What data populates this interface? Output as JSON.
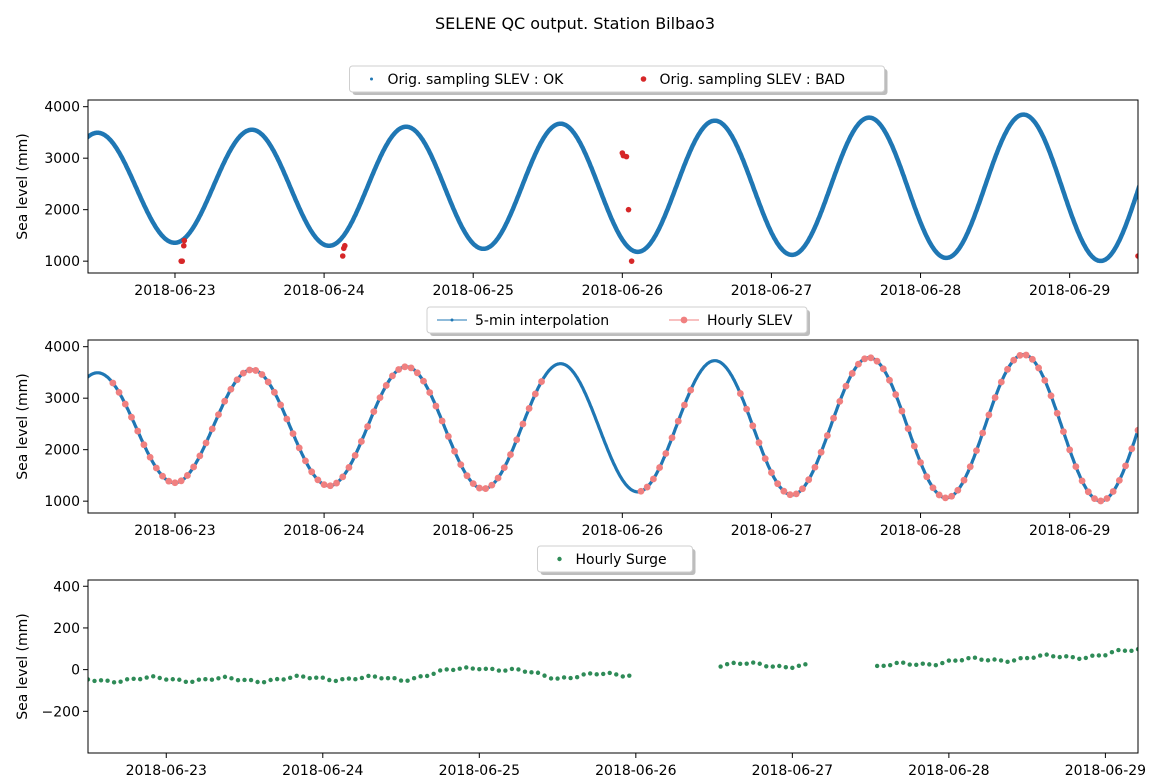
{
  "figure": {
    "title": "SELENE QC output. Station Bilbao3"
  },
  "colors": {
    "ok": "#1f77b4",
    "bad": "#d62728",
    "interp": "#1f77b4",
    "hourly": "#f08080",
    "surge": "#2e8b57"
  },
  "chart_data": [
    {
      "type": "scatter",
      "ylabel": "Sea level (mm)",
      "x_tick_labels": [
        "2018-06-23",
        "2018-06-24",
        "2018-06-25",
        "2018-06-26",
        "2018-06-27",
        "2018-06-28",
        "2018-06-29"
      ],
      "y_ticks": [
        1000,
        2000,
        3000,
        4000
      ],
      "xlim": [
        "2018-06-22 10:00",
        "2018-06-29 11:00"
      ],
      "ylim": [
        770,
        4130
      ],
      "legend_location": "upper center, above axes",
      "series": [
        {
          "name": "Orig. sampling SLEV : OK",
          "marker": "small dot",
          "tide_model": {
            "mean": 2440,
            "amplitude": [
              1050,
              1450
            ],
            "period_hours": 24.84,
            "first_high_water": "2018-06-22 11:30"
          }
        },
        {
          "name": "Orig. sampling SLEV : BAD",
          "marker": "dot",
          "points": [
            [
              "2018-06-23 01:00",
              1000
            ],
            [
              "2018-06-23 01:10",
              1000
            ],
            [
              "2018-06-23 01:25",
              1300
            ],
            [
              "2018-06-23 01:30",
              1400
            ],
            [
              "2018-06-24 03:00",
              1100
            ],
            [
              "2018-06-24 03:10",
              1250
            ],
            [
              "2018-06-24 03:20",
              1300
            ],
            [
              "2018-06-26 00:00",
              3100
            ],
            [
              "2018-06-26 00:10",
              3050
            ],
            [
              "2018-06-26 00:40",
              3030
            ],
            [
              "2018-06-26 01:00",
              2000
            ],
            [
              "2018-06-26 01:30",
              1000
            ],
            [
              "2018-06-29 11:00",
              1100
            ]
          ]
        }
      ]
    },
    {
      "type": "line",
      "ylabel": "Sea level (mm)",
      "x_tick_labels": [
        "2018-06-23",
        "2018-06-24",
        "2018-06-25",
        "2018-06-26",
        "2018-06-27",
        "2018-06-28",
        "2018-06-29"
      ],
      "y_ticks": [
        1000,
        2000,
        3000,
        4000
      ],
      "xlim": [
        "2018-06-22 10:00",
        "2018-06-29 11:00"
      ],
      "ylim": [
        770,
        4130
      ],
      "legend_location": "upper center, above axes",
      "series": [
        {
          "name": "5-min interpolation",
          "marker": "line with small dots"
        },
        {
          "name": "Hourly SLEV",
          "marker": "dot",
          "missing_intervals": [
            [
              "2018-06-25 12:00",
              "2018-06-26 02:00"
            ],
            [
              "2018-06-26 12:00",
              "2018-06-26 18:00"
            ]
          ]
        }
      ]
    },
    {
      "type": "scatter",
      "ylabel": "Sea level (mm)",
      "x_tick_labels": [
        "2018-06-23",
        "2018-06-24",
        "2018-06-25",
        "2018-06-26",
        "2018-06-27",
        "2018-06-28",
        "2018-06-29"
      ],
      "y_ticks": [
        -200,
        0,
        200,
        400
      ],
      "xlim": [
        "2018-06-22 12:00",
        "2018-06-29 05:00"
      ],
      "ylim": [
        -400,
        430
      ],
      "legend_location": "upper center, above axes",
      "series": [
        {
          "name": "Hourly Surge",
          "marker": "dot",
          "anchors": [
            [
              "2018-06-22 12:00",
              -50
            ],
            [
              "2018-06-23 00:00",
              -45
            ],
            [
              "2018-06-23 12:00",
              -50
            ],
            [
              "2018-06-24 00:00",
              -40
            ],
            [
              "2018-06-24 12:00",
              -45
            ],
            [
              "2018-06-25 00:00",
              15
            ],
            [
              "2018-06-25 12:00",
              -35
            ],
            [
              "2018-06-26 00:00",
              -20
            ],
            [
              "2018-06-26 12:00",
              25
            ],
            [
              "2018-06-27 00:00",
              20
            ],
            [
              "2018-06-27 12:00",
              10
            ],
            [
              "2018-06-28 00:00",
              40
            ],
            [
              "2018-06-28 12:00",
              55
            ],
            [
              "2018-06-29 00:00",
              70
            ],
            [
              "2018-06-29 05:00",
              95
            ]
          ],
          "gaps": [
            [
              "2018-06-25 23:00",
              "2018-06-26 13:00"
            ],
            [
              "2018-06-27 02:00",
              "2018-06-27 13:00"
            ]
          ]
        }
      ]
    }
  ]
}
